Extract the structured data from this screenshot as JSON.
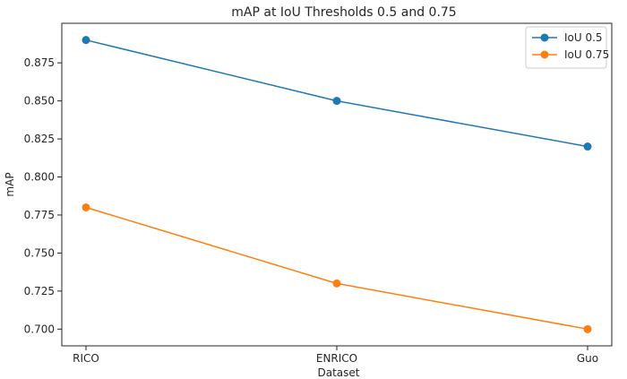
{
  "chart_data": {
    "type": "line",
    "title": "mAP at IoU Thresholds 0.5 and 0.75",
    "xlabel": "Dataset",
    "ylabel": "mAP",
    "categories": [
      "RICO",
      "ENRICO",
      "Guo"
    ],
    "series": [
      {
        "name": "IoU 0.5",
        "color": "#1f77b4",
        "values": [
          0.89,
          0.85,
          0.82
        ]
      },
      {
        "name": "IoU 0.75",
        "color": "#ff7f0e",
        "values": [
          0.78,
          0.73,
          0.7
        ]
      }
    ],
    "ylim": [
      0.689,
      0.901
    ],
    "yticks": [
      0.7,
      0.725,
      0.75,
      0.775,
      0.8,
      0.825,
      0.85,
      0.875
    ],
    "ytick_labels": [
      "0.700",
      "0.725",
      "0.750",
      "0.775",
      "0.800",
      "0.825",
      "0.850",
      "0.875"
    ],
    "grid": false,
    "legend_position": "top-right",
    "marker": "circle"
  }
}
